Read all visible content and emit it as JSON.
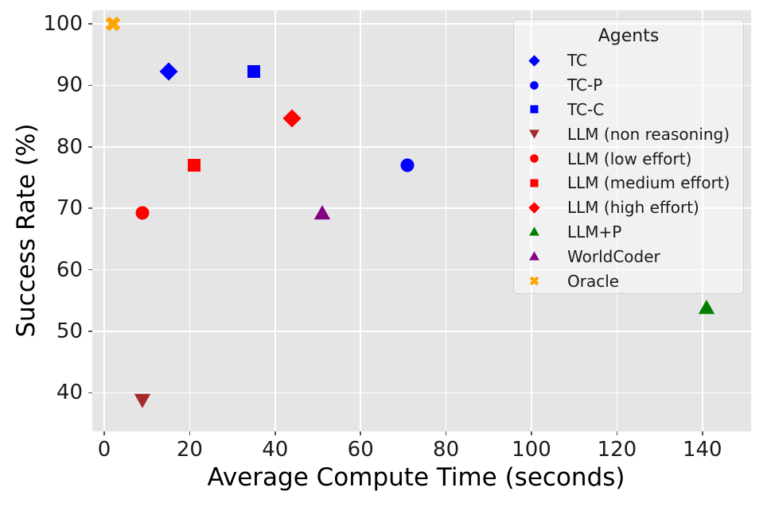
{
  "chart_data": {
    "type": "scatter",
    "title": "",
    "xlabel": "Average Compute Time (seconds)",
    "ylabel": "Success Rate (%)",
    "xlim": [
      -2.8,
      151.4
    ],
    "ylim": [
      33.7,
      102.2
    ],
    "xticks": [
      0,
      20,
      40,
      60,
      80,
      100,
      120,
      140
    ],
    "yticks": [
      40,
      50,
      60,
      70,
      80,
      90,
      100
    ],
    "grid": true,
    "plot_bg_color": "#e5e5e5",
    "grid_color": "#ffffff",
    "legend": {
      "title": "Agents",
      "position": "upper right"
    },
    "series": [
      {
        "name": "TC",
        "marker": "diamond",
        "color": "#0000ff",
        "points": [
          [
            15,
            92.3
          ]
        ]
      },
      {
        "name": "TC-P",
        "marker": "circle",
        "color": "#0000ff",
        "points": [
          [
            71,
            77.0
          ]
        ]
      },
      {
        "name": "TC-C",
        "marker": "square",
        "color": "#0000ff",
        "points": [
          [
            35,
            92.3
          ]
        ]
      },
      {
        "name": "LLM (non reasoning)",
        "marker": "triangle-down",
        "color": "#a52a2a",
        "points": [
          [
            9,
            38.7
          ]
        ]
      },
      {
        "name": "LLM (low effort)",
        "marker": "circle",
        "color": "#ff0000",
        "points": [
          [
            9,
            69.3
          ]
        ]
      },
      {
        "name": "LLM (medium effort)",
        "marker": "square",
        "color": "#ff0000",
        "points": [
          [
            21,
            77.0
          ]
        ]
      },
      {
        "name": "LLM (high effort)",
        "marker": "diamond",
        "color": "#ff0000",
        "points": [
          [
            44,
            84.6
          ]
        ]
      },
      {
        "name": "LLM+P",
        "marker": "triangle-up",
        "color": "#008000",
        "points": [
          [
            141,
            53.8
          ]
        ]
      },
      {
        "name": "WorldCoder",
        "marker": "triangle-up",
        "color": "#800080",
        "points": [
          [
            51,
            69.2
          ]
        ]
      },
      {
        "name": "Oracle",
        "marker": "x-cross",
        "color": "#ffa500",
        "points": [
          [
            2,
            100.0
          ]
        ]
      }
    ]
  }
}
